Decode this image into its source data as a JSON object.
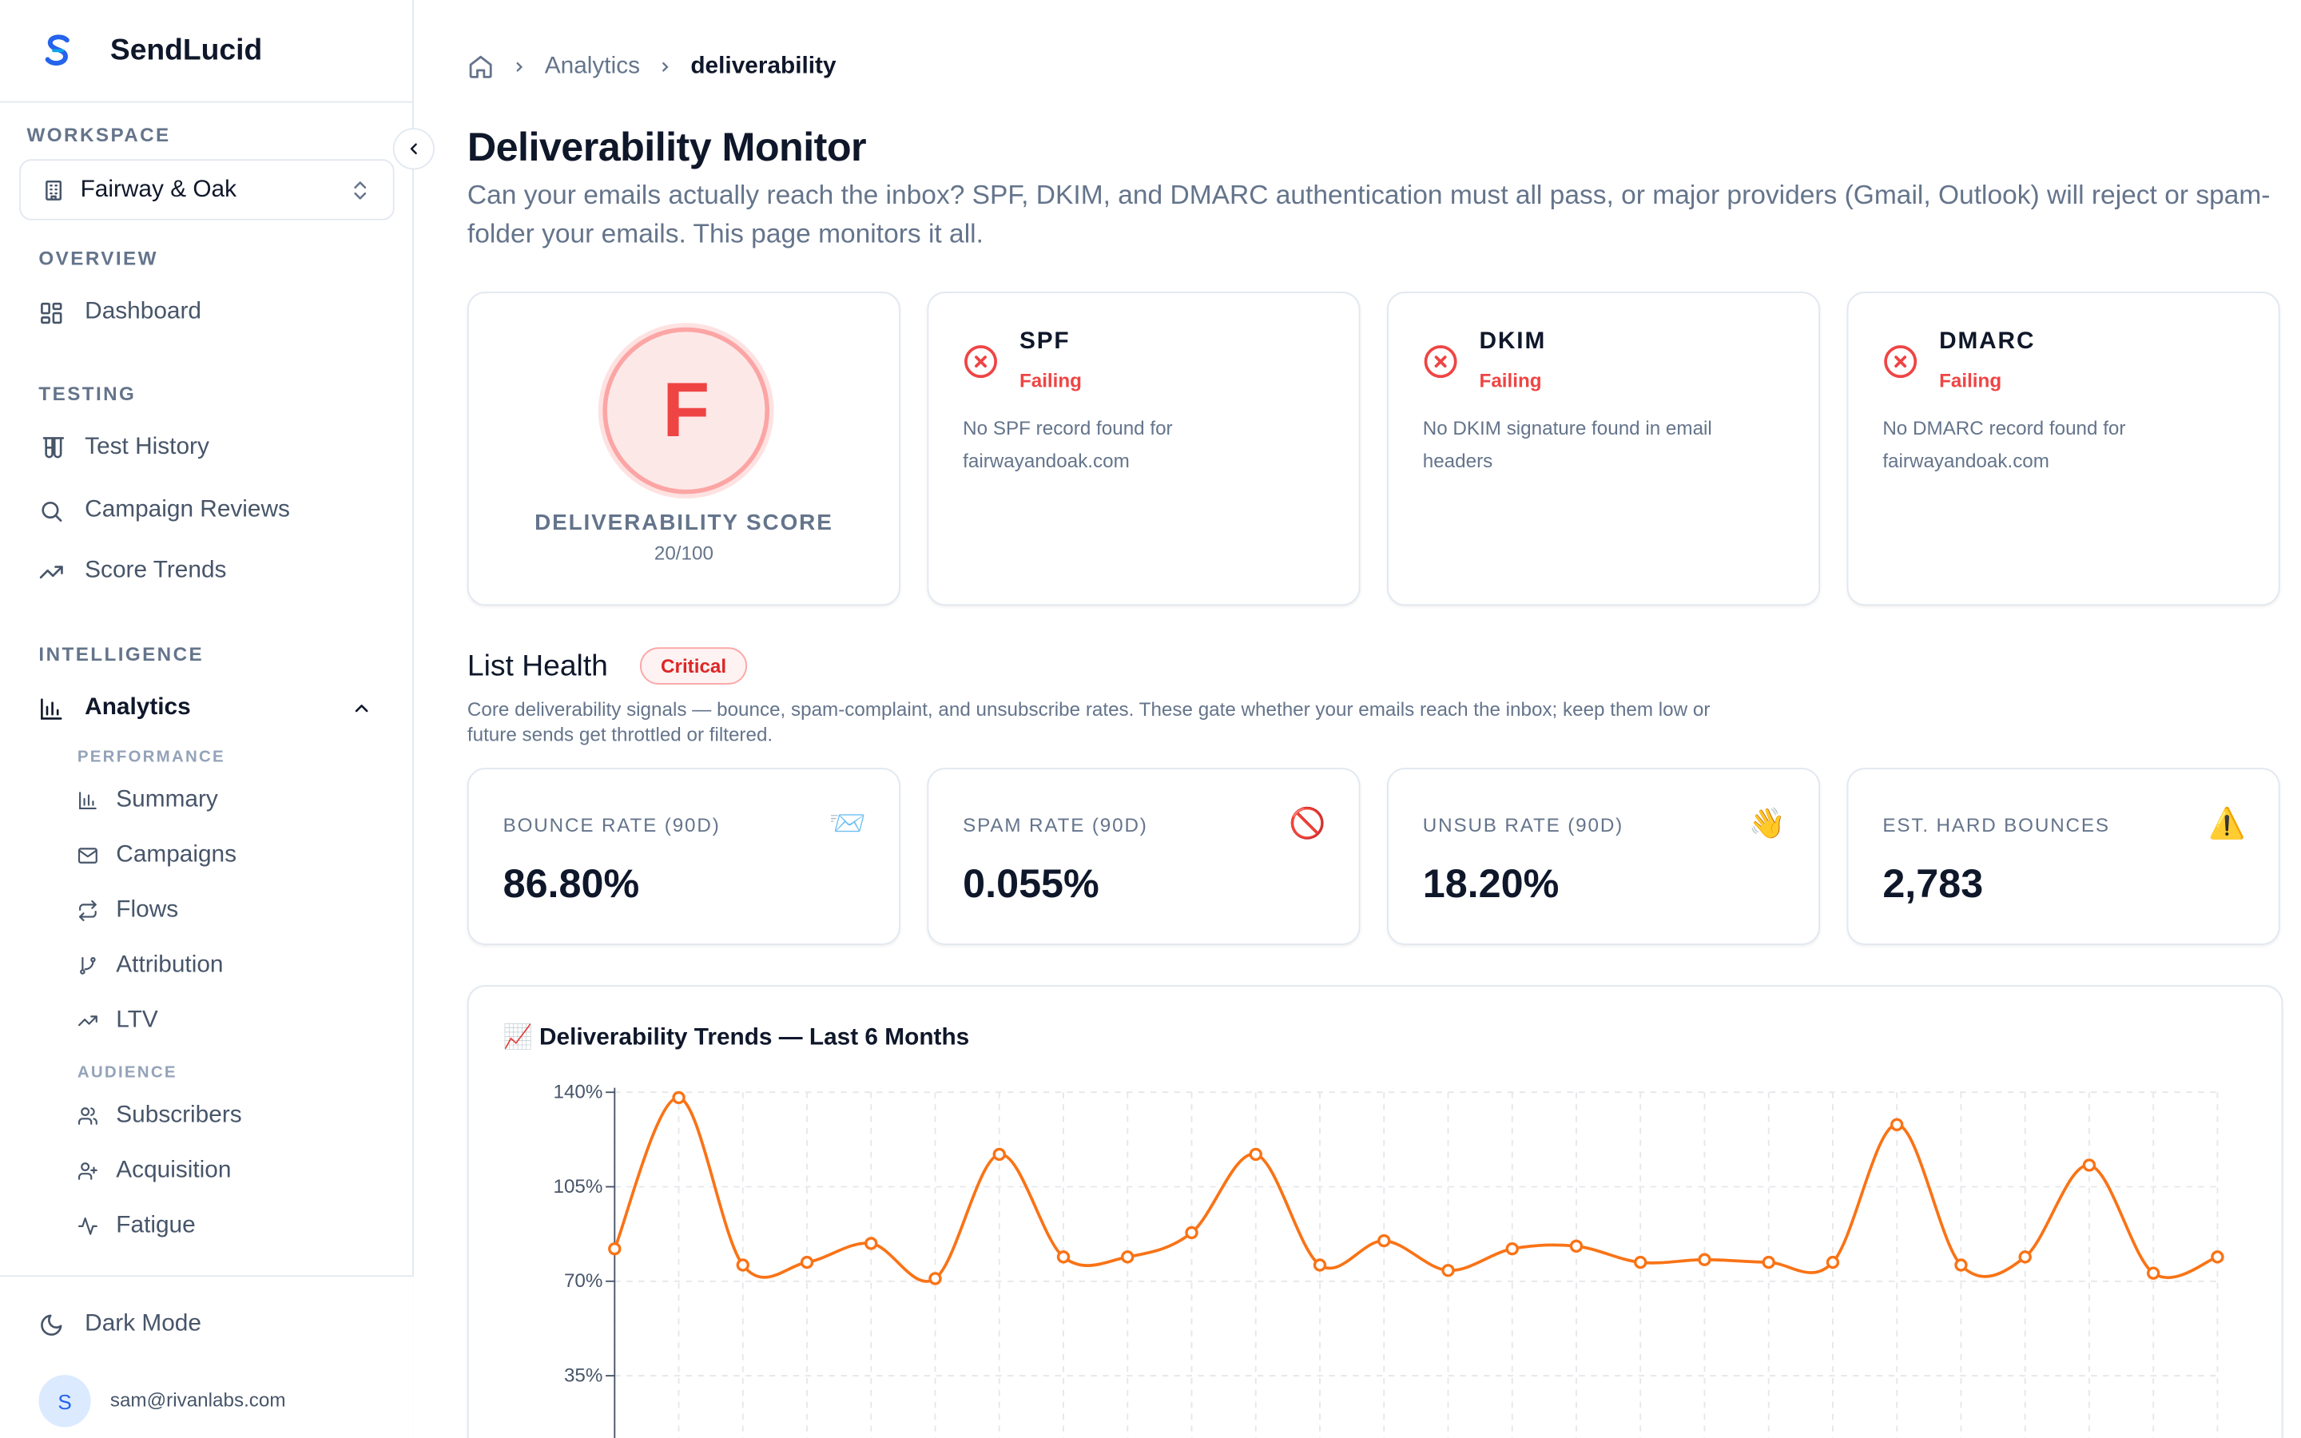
{
  "app": {
    "name": "SendLucid"
  },
  "workspace": {
    "label": "WORKSPACE",
    "name": "Fairway & Oak"
  },
  "nav": {
    "overview": {
      "label": "OVERVIEW",
      "items": [
        {
          "label": "Dashboard",
          "icon": "dashboard-icon"
        }
      ]
    },
    "testing": {
      "label": "TESTING",
      "items": [
        {
          "label": "Test History",
          "icon": "test-tubes-icon"
        },
        {
          "label": "Campaign Reviews",
          "icon": "search-icon"
        },
        {
          "label": "Score Trends",
          "icon": "trending-up-icon"
        }
      ]
    },
    "intelligence": {
      "label": "INTELLIGENCE",
      "analytics_label": "Analytics"
    },
    "performance": {
      "label": "PERFORMANCE",
      "items": [
        {
          "label": "Summary",
          "icon": "bar-chart-icon"
        },
        {
          "label": "Campaigns",
          "icon": "mail-icon"
        },
        {
          "label": "Flows",
          "icon": "repeat-icon"
        },
        {
          "label": "Attribution",
          "icon": "git-branch-icon"
        },
        {
          "label": "LTV",
          "icon": "trending-up-icon"
        }
      ]
    },
    "audience": {
      "label": "AUDIENCE",
      "items": [
        {
          "label": "Subscribers",
          "icon": "users-icon"
        },
        {
          "label": "Acquisition",
          "icon": "user-plus-icon"
        },
        {
          "label": "Fatigue",
          "icon": "activity-icon"
        }
      ]
    }
  },
  "footer": {
    "dark_mode": "Dark Mode",
    "avatar_initial": "S",
    "email": "sam@rivanlabs.com"
  },
  "breadcrumb": {
    "parent": "Analytics",
    "current": "deliverability"
  },
  "page": {
    "title": "Deliverability Monitor",
    "description": "Can your emails actually reach the inbox? SPF, DKIM, and DMARC authentication must all pass, or major providers (Gmail, Outlook) will reject or spam-folder your emails. This page monitors it all."
  },
  "score": {
    "grade": "F",
    "label": "DELIVERABILITY SCORE",
    "value": "20/100"
  },
  "auth": [
    {
      "title": "SPF",
      "status": "Failing",
      "desc": "No SPF record found for fairwayandoak.com"
    },
    {
      "title": "DKIM",
      "status": "Failing",
      "desc": "No DKIM signature found in email headers"
    },
    {
      "title": "DMARC",
      "status": "Failing",
      "desc": "No DMARC record found for fairwayandoak.com"
    }
  ],
  "list_health": {
    "title": "List Health",
    "badge": "Critical",
    "description": "Core deliverability signals — bounce, spam-complaint, and unsubscribe rates. These gate whether your emails reach the inbox; keep them low or future sends get throttled or filtered."
  },
  "metrics": [
    {
      "label": "BOUNCE RATE (90D)",
      "value": "86.80%",
      "icon": "📨"
    },
    {
      "label": "SPAM RATE (90D)",
      "value": "0.055%",
      "icon": "🚫"
    },
    {
      "label": "UNSUB RATE (90D)",
      "value": "18.20%",
      "icon": "👋"
    },
    {
      "label": "EST. HARD BOUNCES",
      "value": "2,783",
      "icon": "⚠️"
    }
  ],
  "chart_title": "📈 Deliverability Trends — Last 6 Months",
  "colors": {
    "danger": "#ef4444",
    "line": "#f97316",
    "accent": "#2563eb"
  },
  "chart_data": {
    "type": "line",
    "title": "📈 Deliverability Trends — Last 6 Months",
    "y_ticks": [
      "140%",
      "105%",
      "70%",
      "35%"
    ],
    "ylim": [
      0,
      140
    ],
    "grid": true,
    "series": [
      {
        "values": [
          82,
          138,
          76,
          77,
          84,
          71,
          117,
          79,
          79,
          88,
          117,
          76,
          85,
          74,
          82,
          83,
          77,
          78,
          77,
          77,
          128,
          76,
          79,
          113,
          73,
          79
        ]
      }
    ]
  }
}
